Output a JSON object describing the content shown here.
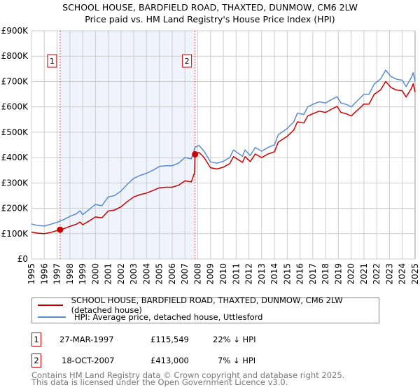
{
  "chart_data": {
    "type": "line",
    "title": "SCHOOL HOUSE, BARDFIELD ROAD, THAXTED, DUNMOW, CM6 2LW",
    "subtitle": "Price paid vs. HM Land Registry's House Price Index (HPI)",
    "xlim": [
      1995,
      2025
    ],
    "ylim": [
      0,
      900000
    ],
    "x_ticks": [
      "1995",
      "1996",
      "1997",
      "1998",
      "1999",
      "2000",
      "2001",
      "2002",
      "2003",
      "2004",
      "2005",
      "2006",
      "2007",
      "2008",
      "2009",
      "2010",
      "2011",
      "2012",
      "2013",
      "2014",
      "2015",
      "2016",
      "2017",
      "2018",
      "2019",
      "2020",
      "2021",
      "2022",
      "2023",
      "2024",
      "2025"
    ],
    "y_ticks": [
      {
        "value": 0,
        "label": "£0"
      },
      {
        "value": 100000,
        "label": "£100K"
      },
      {
        "value": 200000,
        "label": "£200K"
      },
      {
        "value": 300000,
        "label": "£300K"
      },
      {
        "value": 400000,
        "label": "£400K"
      },
      {
        "value": 500000,
        "label": "£500K"
      },
      {
        "value": 600000,
        "label": "£600K"
      },
      {
        "value": 700000,
        "label": "£700K"
      },
      {
        "value": 800000,
        "label": "£800K"
      },
      {
        "value": 900000,
        "label": "£900K"
      }
    ],
    "grid": true,
    "shaded_range": [
      1997.24,
      2007.79
    ],
    "series": [
      {
        "name": "SCHOOL HOUSE, BARDFIELD ROAD, THAXTED, DUNMOW, CM6 2LW (detached house)",
        "color": "#cc0000",
        "x": [
          1995,
          1995.5,
          1996,
          1996.5,
          1997,
          1997.24,
          1997.5,
          1998,
          1998.5,
          1998.8,
          1999,
          1999.5,
          2000,
          2000.5,
          2001,
          2001.5,
          2002,
          2002.5,
          2003,
          2003.5,
          2004,
          2004.5,
          2005,
          2005.5,
          2006,
          2006.5,
          2007,
          2007.5,
          2007.75,
          2007.79,
          2008.1,
          2008.5,
          2009,
          2009.5,
          2010,
          2010.5,
          2010.8,
          2011.5,
          2011.7,
          2012.1,
          2012.5,
          2013,
          2013.5,
          2014,
          2014.3,
          2015,
          2015.5,
          2015.8,
          2016.3,
          2016.6,
          2017,
          2017.5,
          2018,
          2018.5,
          2018.9,
          2019.2,
          2019.6,
          2020,
          2020.4,
          2020.7,
          2021,
          2021.4,
          2021.8,
          2022.3,
          2022.7,
          2023.1,
          2023.5,
          2024,
          2024.3,
          2024.7,
          2024.85,
          2025
        ],
        "y": [
          106000,
          102000,
          100000,
          105000,
          112000,
          115549,
          119000,
          129000,
          137000,
          146000,
          135000,
          150000,
          166000,
          162000,
          189000,
          193000,
          206000,
          227000,
          245000,
          254000,
          260000,
          270000,
          281000,
          283000,
          283000,
          291000,
          308000,
          304000,
          340000,
          413000,
          421000,
          400000,
          360000,
          355000,
          362000,
          376000,
          404000,
          381000,
          404000,
          384000,
          414000,
          400000,
          414000,
          423000,
          461000,
          484000,
          508000,
          541000,
          536000,
          564000,
          573000,
          583000,
          578000,
          592000,
          602000,
          578000,
          573000,
          564000,
          583000,
          597000,
          611000,
          611000,
          649000,
          667000,
          700000,
          677000,
          667000,
          663000,
          639000,
          672000,
          691000,
          658000
        ]
      },
      {
        "name": "HPI: Average price, detached house, Uttlesford",
        "color": "#5b8bd0",
        "x": [
          1995,
          1995.5,
          1996,
          1996.5,
          1997,
          1997.24,
          1997.5,
          1998,
          1998.5,
          1998.8,
          1999,
          1999.5,
          2000,
          2000.5,
          2001,
          2001.5,
          2002,
          2002.5,
          2003,
          2003.5,
          2004,
          2004.5,
          2005,
          2005.5,
          2006,
          2006.5,
          2007,
          2007.5,
          2007.79,
          2008.1,
          2008.5,
          2009,
          2009.5,
          2010,
          2010.5,
          2010.8,
          2011.5,
          2011.7,
          2012.1,
          2012.5,
          2013,
          2013.5,
          2014,
          2014.3,
          2015,
          2015.5,
          2015.8,
          2016.3,
          2016.6,
          2017,
          2017.5,
          2018,
          2018.5,
          2018.9,
          2019.2,
          2019.6,
          2020,
          2020.4,
          2020.7,
          2021,
          2021.4,
          2021.8,
          2022.3,
          2022.7,
          2023.1,
          2023.5,
          2024,
          2024.3,
          2024.7,
          2024.85,
          2025
        ],
        "y": [
          138000,
          132000,
          130000,
          137000,
          145000,
          150000,
          155000,
          168000,
          178000,
          190000,
          175000,
          195000,
          215000,
          210000,
          245000,
          250000,
          268000,
          295000,
          318000,
          330000,
          338000,
          350000,
          365000,
          368000,
          368000,
          378000,
          400000,
          395000,
          440000,
          448000,
          425000,
          383000,
          378000,
          385000,
          400000,
          430000,
          405000,
          430000,
          408000,
          440000,
          425000,
          440000,
          450000,
          490000,
          515000,
          540000,
          575000,
          570000,
          600000,
          610000,
          620000,
          615000,
          630000,
          640000,
          615000,
          610000,
          600000,
          620000,
          635000,
          650000,
          650000,
          690000,
          710000,
          745000,
          720000,
          710000,
          705000,
          680000,
          715000,
          735000,
          700000
        ]
      }
    ],
    "sales": [
      {
        "label": "1",
        "x": 1997.24,
        "y": 115549,
        "date": "27-MAR-1997",
        "price": "£115,549",
        "hpi_diff": "22% ↓ HPI"
      },
      {
        "label": "2",
        "x": 2007.79,
        "y": 413000,
        "date": "18-OCT-2007",
        "price": "£413,000",
        "hpi_diff": "7% ↓ HPI"
      }
    ],
    "legend_placement": "below"
  },
  "footer": {
    "line1": "Contains HM Land Registry data © Crown copyright and database right 2025.",
    "line2": "This data is licensed under the Open Government Licence v3.0."
  }
}
